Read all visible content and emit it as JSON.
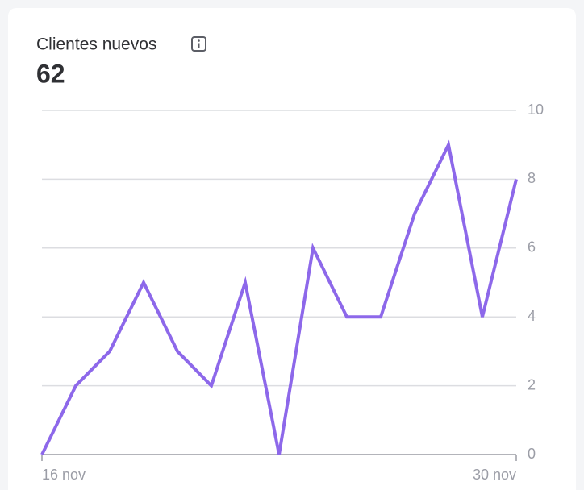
{
  "chart_data": {
    "type": "line",
    "title": "Clientes nuevos",
    "kpi": 62,
    "categories": [
      "16 nov",
      null,
      null,
      null,
      null,
      null,
      null,
      null,
      null,
      null,
      null,
      null,
      null,
      null,
      "30 nov"
    ],
    "values": [
      0,
      2,
      3,
      5,
      3,
      2,
      5,
      0,
      6,
      4,
      4,
      7,
      9,
      4,
      8
    ],
    "color": "#8d68ea",
    "ylim": [
      0,
      10
    ],
    "yticks": [
      0,
      2,
      4,
      6,
      8,
      10
    ],
    "grid": true
  }
}
